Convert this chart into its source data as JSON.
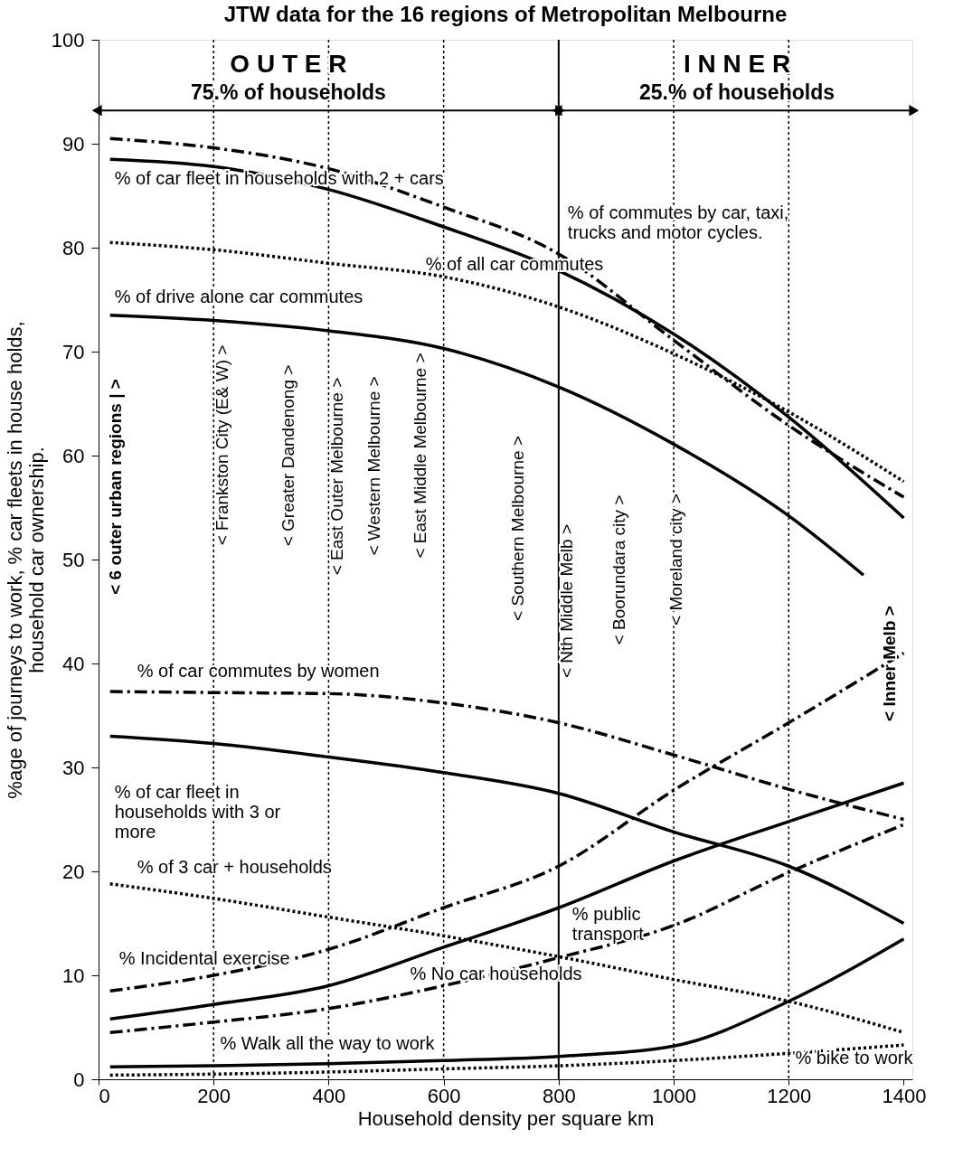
{
  "chart_data": {
    "type": "line",
    "title": "JTW data for the 16 regions of Metropolitan Melbourne",
    "xlabel": "Household density per square km",
    "ylabel": "%age of journeys to work, % car fleets in house holds, household car ownership.",
    "x": [
      20,
      200,
      400,
      600,
      800,
      1000,
      1200,
      1400
    ],
    "xlim": [
      0,
      1415
    ],
    "xticks": [
      0,
      200,
      400,
      600,
      800,
      {
        "value": 1000,
        "label": "1000"
      },
      {
        "value": 1200,
        "label": "1200"
      },
      {
        "value": 1400,
        "label": "1400"
      }
    ],
    "ylim": [
      0,
      100
    ],
    "yticks": [
      0,
      10,
      20,
      30,
      40,
      50,
      60,
      70,
      80,
      90,
      100
    ],
    "grid": false,
    "marker": "none",
    "series": [
      {
        "name": "% of commutes by car, taxi, trucks and motor cycles.",
        "color": "#000000",
        "line_style": "dashed",
        "values": [
          90.5,
          89.6,
          87.6,
          83.9,
          79.4,
          71.1,
          62.9,
          56
        ]
      },
      {
        "name": "% of car fleet in households with 2 + cars",
        "color": "#000000",
        "line_style": "solid",
        "values": [
          88.5,
          87.8,
          85.6,
          82,
          77.8,
          71.7,
          63.7,
          54
        ]
      },
      {
        "name": "% of all car commutes",
        "color": "#000000",
        "line_style": "dotted",
        "values": [
          80.5,
          79.8,
          78.5,
          77.2,
          74.3,
          69.8,
          64.2,
          57.5
        ]
      },
      {
        "name": "% of drive alone car commutes",
        "color": "#000000",
        "line_style": "solid",
        "x": [
          20,
          200,
          400,
          600,
          800,
          1000,
          1200,
          1330
        ],
        "values": [
          73.5,
          73,
          72,
          70.3,
          66.6,
          61.1,
          54.2,
          48.5
        ]
      },
      {
        "name": "% of car commutes by women",
        "color": "#000000",
        "line_style": "dashed",
        "values": [
          37.3,
          37.2,
          37.1,
          36.2,
          34.3,
          31.2,
          27.9,
          25
        ]
      },
      {
        "name": "% of car fleet in households with 3 or more",
        "color": "#000000",
        "line_style": "solid",
        "values": [
          33,
          32.3,
          31,
          29.5,
          27.5,
          23.8,
          20.5,
          15
        ]
      },
      {
        "name": "% of 3 car + households",
        "color": "#000000",
        "line_style": "dotted",
        "values": [
          18.8,
          17.4,
          15.6,
          13.8,
          11.8,
          9.6,
          7.5,
          4.5
        ]
      },
      {
        "name": "% Incidental exercise",
        "color": "#000000",
        "line_style": "dashed",
        "values": [
          8.5,
          10,
          12.5,
          16.5,
          20.5,
          27.8,
          34.3,
          41
        ]
      },
      {
        "name": "% public transport",
        "color": "#000000",
        "line_style": "solid",
        "values": [
          5.8,
          7.2,
          9,
          12.7,
          16.5,
          21,
          24.8,
          28.5
        ]
      },
      {
        "name": "% No car households",
        "color": "#000000",
        "line_style": "dashed",
        "values": [
          4.5,
          5.5,
          6.8,
          9,
          11.7,
          14.8,
          19.9,
          24.5
        ]
      },
      {
        "name": "% Walk all the way to work",
        "color": "#000000",
        "line_style": "solid",
        "values": [
          1.2,
          1.3,
          1.5,
          1.8,
          2.2,
          3.2,
          7.5,
          13.5
        ]
      },
      {
        "name": "% bike to work",
        "color": "#000000",
        "line_style": "dotted",
        "values": [
          0.4,
          0.5,
          0.7,
          1,
          1.3,
          1.8,
          2.5,
          3.3
        ]
      }
    ],
    "ref_lines": [
      {
        "axis": "x",
        "value": 200,
        "line_style": "dotted"
      },
      {
        "axis": "x",
        "value": 400,
        "line_style": "dotted"
      },
      {
        "axis": "x",
        "value": 600,
        "line_style": "dotted"
      },
      {
        "axis": "x",
        "value": 800,
        "line_style": "solid"
      },
      {
        "axis": "x",
        "value": 1000,
        "line_style": "dotted"
      },
      {
        "axis": "x",
        "value": 1200,
        "line_style": "dotted"
      }
    ],
    "annotations": [
      "O U T E R",
      "I N N E R",
      "75.% of households",
      "25.% of households",
      "< 6 outer urban regions | >",
      "< Frankston City (E& W) >",
      "< Greater Dandenong >",
      "< East Outer Melbourne >",
      "< Western Melbourne >",
      "< East Middle Melbourne >",
      "< Southern Melbourne >",
      "< Nth Middle Melb >",
      "< Boorundara city >",
      "< Moreland city >",
      "< Inner Melb >"
    ]
  }
}
